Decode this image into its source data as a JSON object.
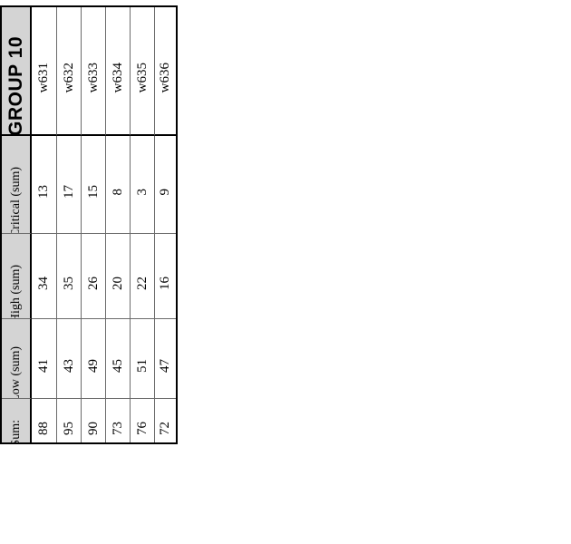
{
  "grid": {
    "title": "GROUP 10",
    "columns": [
      "w631",
      "w632",
      "w633",
      "w634",
      "w635",
      "w636"
    ],
    "rows": [
      {
        "label": "Critical (sum)",
        "values": [
          "13",
          "17",
          "15",
          "8",
          "3",
          "9"
        ]
      },
      {
        "label": "High (sum)",
        "values": [
          "34",
          "35",
          "26",
          "20",
          "22",
          "16"
        ]
      },
      {
        "label": "Low (sum)",
        "values": [
          "41",
          "43",
          "49",
          "45",
          "51",
          "47"
        ]
      },
      {
        "label": "Sum:",
        "values": [
          "88",
          "95",
          "90",
          "73",
          "76",
          "72"
        ]
      }
    ],
    "colors": {
      "header_bg": "#d4d4d4",
      "outer_border": "#000000",
      "grid_line": "#6b6b6b"
    },
    "orientation": "rotated-90-ccw"
  }
}
